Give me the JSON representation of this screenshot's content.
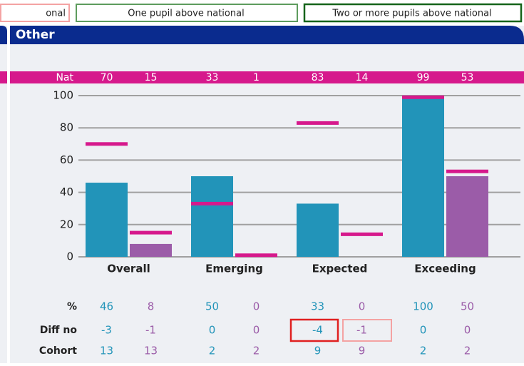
{
  "key": [
    {
      "label": "onal",
      "color": "#f4a3a3"
    },
    {
      "label": "One pupil above national",
      "color": "#5e9c5e"
    },
    {
      "label": "Two or more pupils above national",
      "color": "#16641a"
    }
  ],
  "panel_title": "Other",
  "chart_data": {
    "type": "bar",
    "categories": [
      "Overall",
      "Emerging",
      "Expected",
      "Exceeding"
    ],
    "national_label": "Nat",
    "national_color": "#d6198c",
    "series": [
      {
        "color": "#2294b9",
        "values": [
          46,
          50,
          33,
          100
        ],
        "national": [
          70,
          33,
          83,
          99
        ],
        "diff": [
          -3,
          0,
          -4,
          0
        ],
        "cohort": [
          13,
          2,
          9,
          2
        ]
      },
      {
        "color": "#9b5ca8",
        "values": [
          8,
          0,
          0,
          50
        ],
        "national": [
          15,
          1,
          14,
          53
        ],
        "diff": [
          -1,
          0,
          -1,
          0
        ],
        "cohort": [
          13,
          2,
          9,
          2
        ]
      }
    ],
    "row_labels": [
      "%",
      "Diff no",
      "Cohort"
    ],
    "ylim": [
      0,
      100
    ],
    "yticks": [
      0,
      20,
      40,
      60,
      80,
      100
    ],
    "grid": true
  }
}
